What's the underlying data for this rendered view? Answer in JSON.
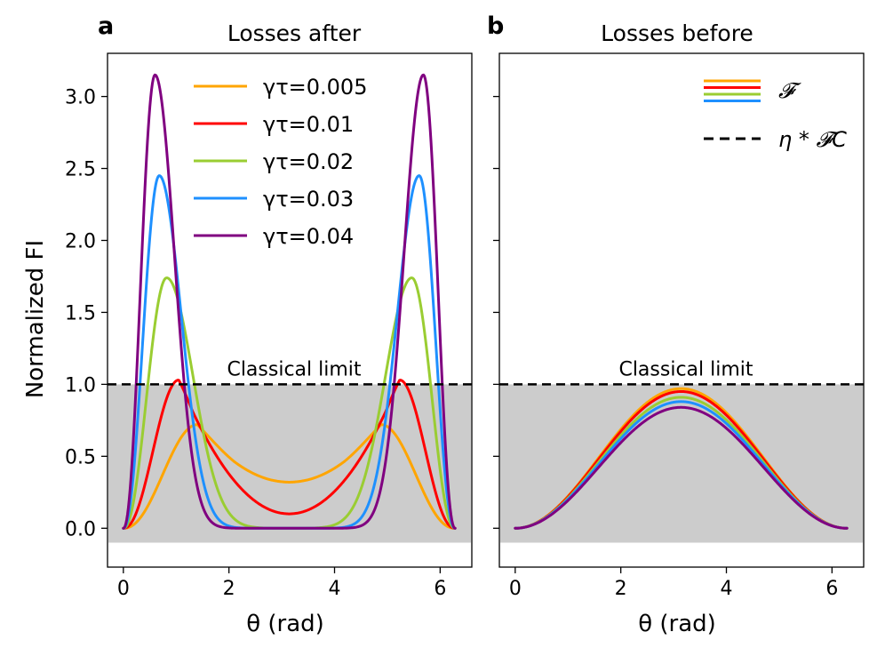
{
  "chart_data": [
    {
      "panel_letter": "a",
      "type": "line",
      "title": "Losses after",
      "xlabel": "θ (rad)",
      "ylabel": "Normalized FI",
      "xlim": [
        -0.3,
        6.6
      ],
      "ylim": [
        -0.27,
        3.3
      ],
      "xticks": [
        0,
        2,
        4,
        6
      ],
      "yticks": [
        0.0,
        0.5,
        1.0,
        1.5,
        2.0,
        2.5,
        3.0
      ],
      "xtick_labels": [
        "0",
        "2",
        "4",
        "6"
      ],
      "ytick_labels": [
        "0.0",
        "0.5",
        "1.0",
        "1.5",
        "2.0",
        "2.5",
        "3.0"
      ],
      "shaded_region": {
        "y_from": -0.1,
        "y_to": 1.0,
        "color": "#cccccc"
      },
      "reference_line": {
        "y": 1.0,
        "style": "dashed",
        "color": "#000000",
        "label": "Classical limit"
      },
      "legend": {
        "position": "top-center"
      },
      "series": [
        {
          "name": "γτ=0.005",
          "color": "#FFA500",
          "peak": 0.72,
          "peak_x": 1.4,
          "center": 0.32
        },
        {
          "name": "γτ=0.01",
          "color": "#FF0000",
          "peak": 1.03,
          "peak_x": 1.05,
          "center": 0.1
        },
        {
          "name": "γτ=0.02",
          "color": "#9ACD32",
          "peak": 1.74,
          "peak_x": 0.82,
          "center": 0.0
        },
        {
          "name": "γτ=0.03",
          "color": "#1E90FF",
          "peak": 2.45,
          "peak_x": 0.68,
          "center": 0.0
        },
        {
          "name": "γτ=0.04",
          "color": "#800080",
          "peak": 3.15,
          "peak_x": 0.6,
          "center": 0.0
        }
      ]
    },
    {
      "panel_letter": "b",
      "type": "line",
      "title": "Losses before",
      "xlabel": "θ (rad)",
      "ylabel": "",
      "xlim": [
        -0.3,
        6.6
      ],
      "ylim": [
        -0.27,
        3.3
      ],
      "xticks": [
        0,
        2,
        4,
        6
      ],
      "yticks": [
        0.0,
        0.5,
        1.0,
        1.5,
        2.0,
        2.5,
        3.0
      ],
      "xtick_labels": [
        "0",
        "2",
        "4",
        "6"
      ],
      "shaded_region": {
        "y_from": -0.1,
        "y_to": 1.0,
        "color": "#cccccc"
      },
      "reference_line": {
        "y": 1.0,
        "style": "dashed",
        "color": "#000000",
        "label": "Classical limit"
      },
      "legend": {
        "position": "top-right",
        "entries": [
          {
            "label": "𝓕",
            "colors": [
              "#FFA500",
              "#FF0000",
              "#9ACD32",
              "#1E90FF"
            ]
          },
          {
            "label": "η * 𝓕C",
            "style": "dashed",
            "colors": [
              "#000000"
            ]
          }
        ]
      },
      "series": [
        {
          "name": "γτ=0.005",
          "color": "#FFA500",
          "peak": 0.97
        },
        {
          "name": "γτ=0.01",
          "color": "#FF0000",
          "peak": 0.95
        },
        {
          "name": "γτ=0.02",
          "color": "#9ACD32",
          "peak": 0.91
        },
        {
          "name": "γτ=0.03",
          "color": "#1E90FF",
          "peak": 0.88
        },
        {
          "name": "γτ=0.04",
          "color": "#800080",
          "peak": 0.84
        }
      ]
    }
  ]
}
